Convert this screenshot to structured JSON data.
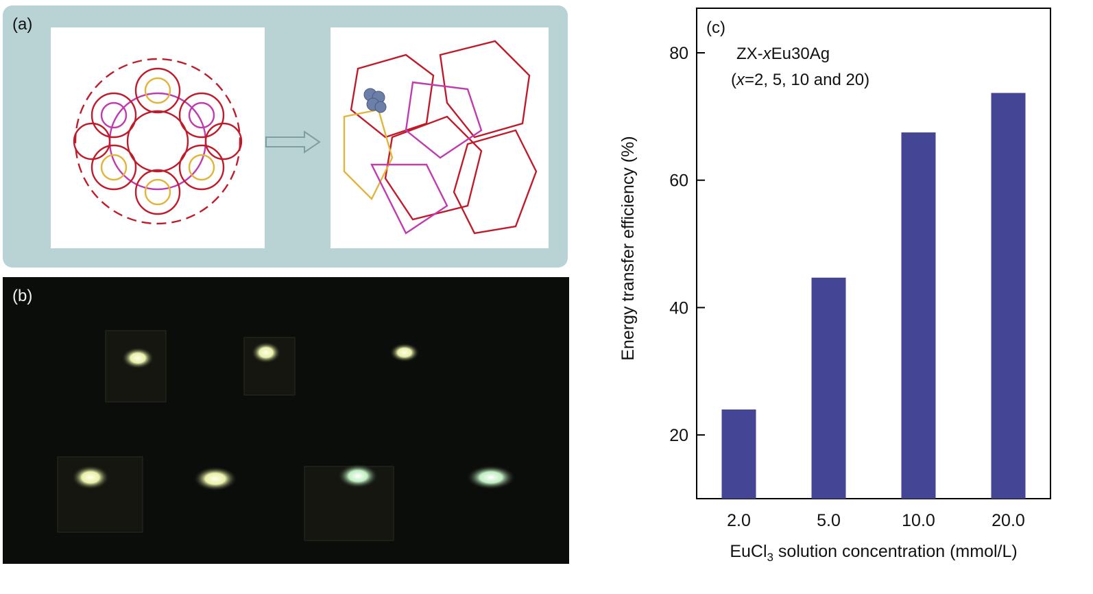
{
  "panel_a": {
    "label": "(a)"
  },
  "panel_b": {
    "label": "(b)"
  },
  "panel_c": {
    "label": "(c)",
    "annotation_line1": "ZX-xEu30Ag",
    "annotation_line2": "(x=2, 5, 10 and 20)"
  },
  "chart_data": {
    "type": "bar",
    "categories": [
      "2.0",
      "5.0",
      "10.0",
      "20.0"
    ],
    "values": [
      24,
      44.7,
      67.5,
      73.7
    ],
    "ylabel": "Energy transfer efficiency (%)",
    "xlabel": "EuCl3 solution concentration (mmol/L)",
    "ylim": [
      10,
      87
    ],
    "yticks": [
      20,
      40,
      60,
      80
    ],
    "bar_color": "#454596",
    "grid": false
  }
}
